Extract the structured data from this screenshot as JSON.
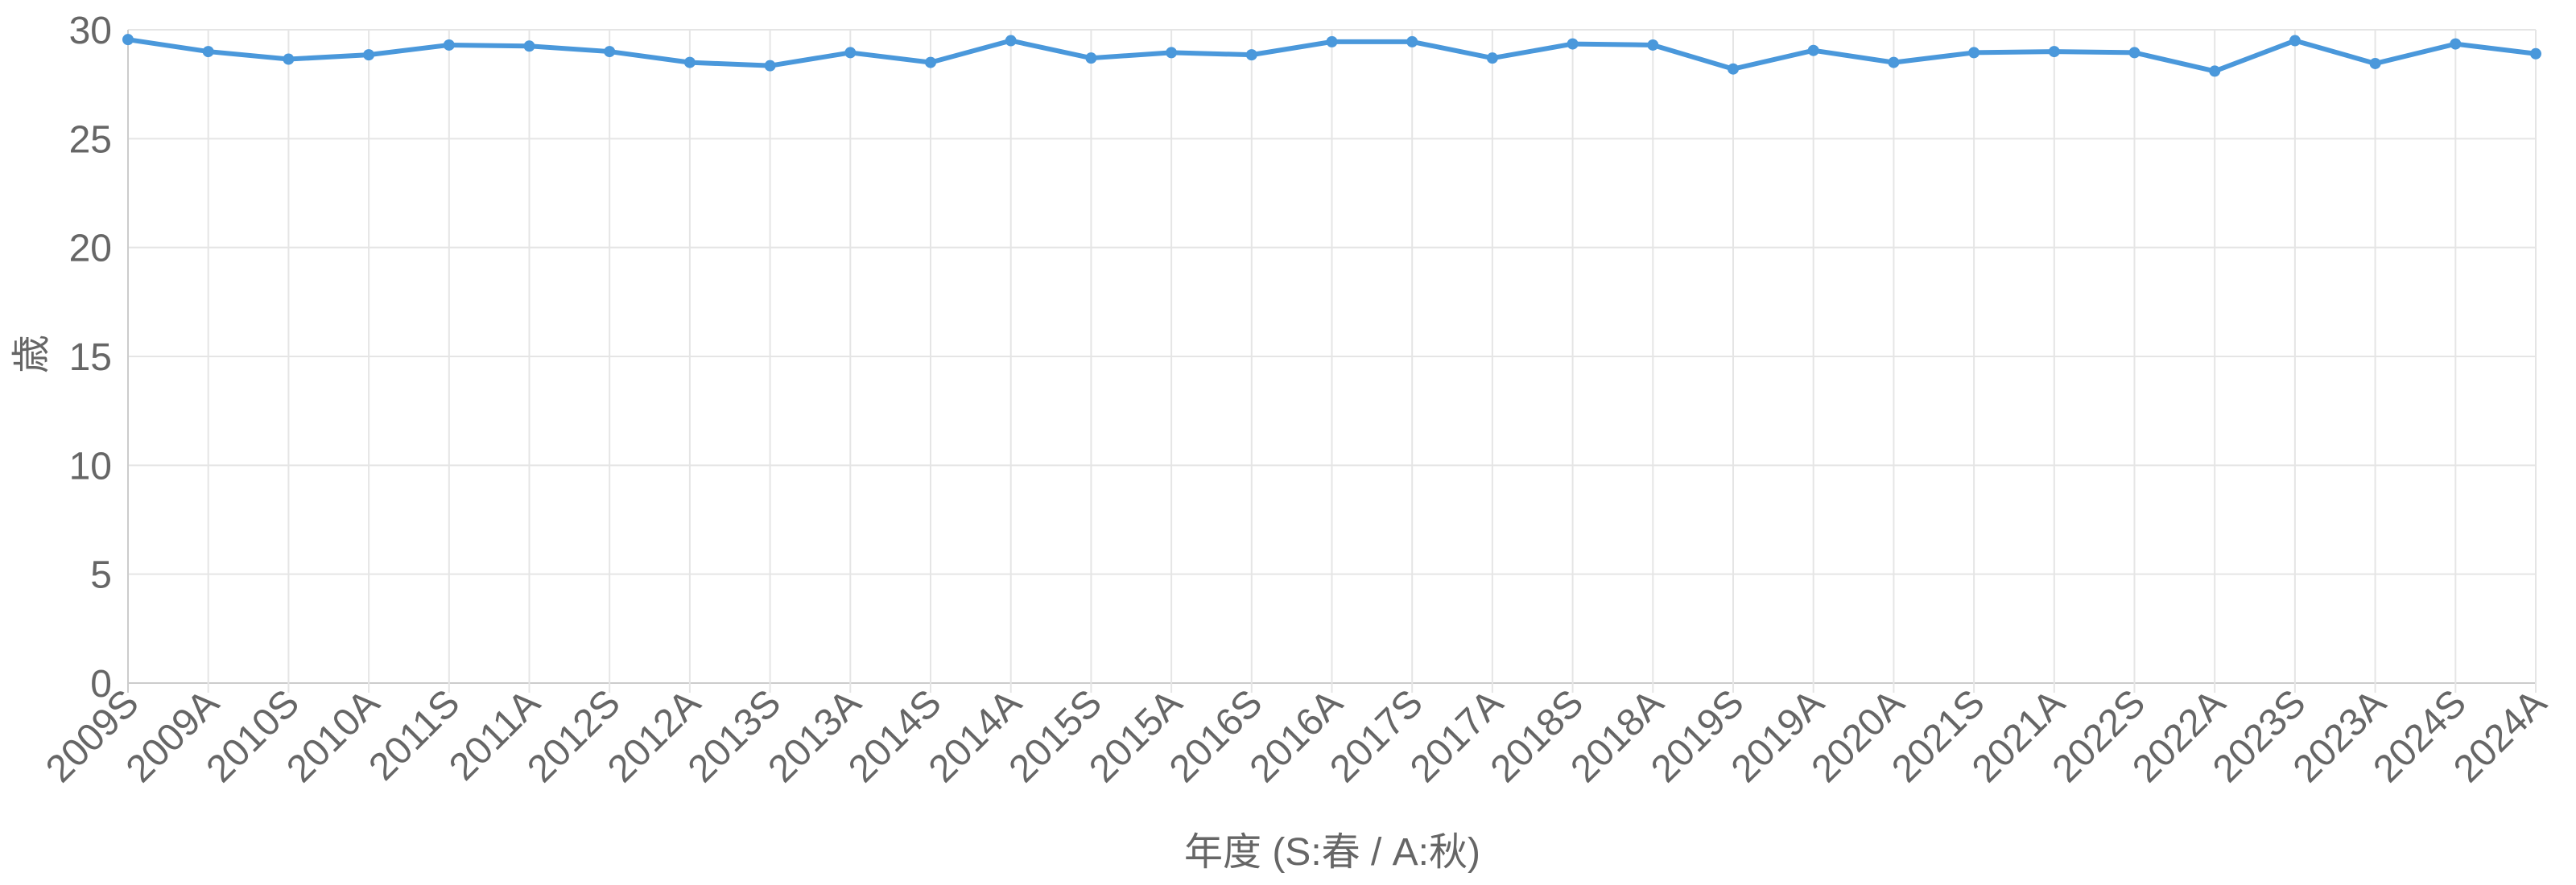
{
  "chart_data": {
    "type": "line",
    "xlabel": "年度 (S:春 / A:秋)",
    "ylabel": "歳",
    "categories": [
      "2009S",
      "2009A",
      "2010S",
      "2010A",
      "2011S",
      "2011A",
      "2012S",
      "2012A",
      "2013S",
      "2013A",
      "2014S",
      "2014A",
      "2015S",
      "2015A",
      "2016S",
      "2016A",
      "2017S",
      "2017A",
      "2018S",
      "2018A",
      "2019S",
      "2019A",
      "2020A",
      "2021S",
      "2021A",
      "2022S",
      "2022A",
      "2023S",
      "2023A",
      "2024S",
      "2024A"
    ],
    "series": [
      {
        "color": "#4a98db",
        "values": [
          29.55,
          29.0,
          28.65,
          28.85,
          29.3,
          29.25,
          29.0,
          28.5,
          28.35,
          28.95,
          28.5,
          29.5,
          28.7,
          28.95,
          28.85,
          29.45,
          29.45,
          28.7,
          29.35,
          29.3,
          28.2,
          29.05,
          28.5,
          28.95,
          29.0,
          28.95,
          28.1,
          29.5,
          28.45,
          29.35,
          28.9
        ]
      }
    ],
    "ylim": [
      0,
      30
    ],
    "yticks": [
      0,
      5,
      10,
      15,
      20,
      25,
      30
    ],
    "grid": true
  }
}
